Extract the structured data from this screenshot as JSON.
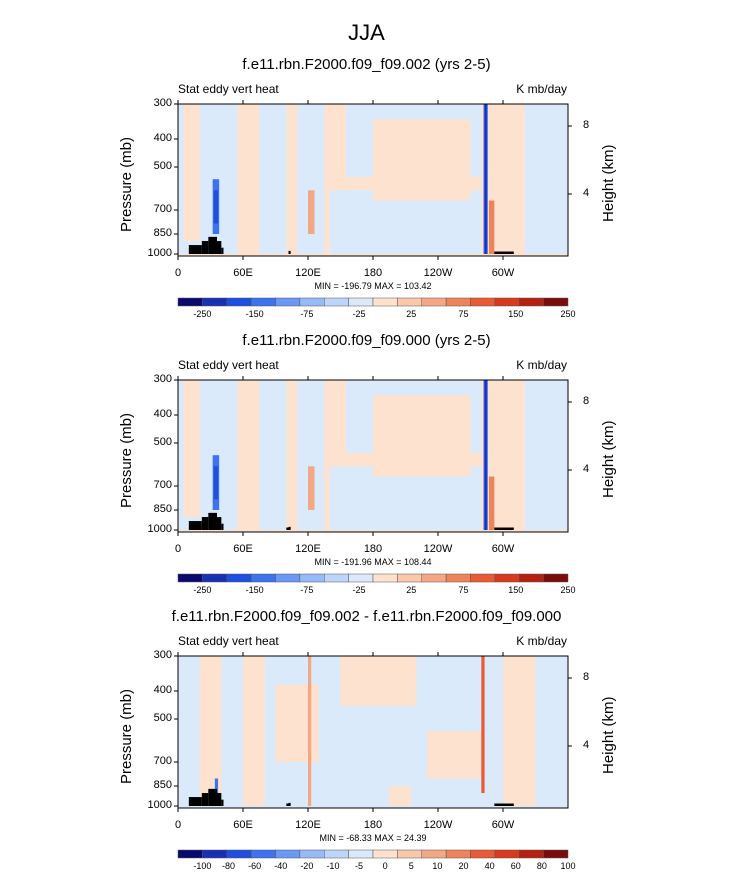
{
  "title": "JJA",
  "colors": {
    "neg": [
      "#0a0a6e",
      "#1a2fb4",
      "#1f4fe0",
      "#3d72f0",
      "#6a98f5",
      "#97b9f7",
      "#bdd5f8",
      "#dbeafb"
    ],
    "pos": [
      "#fde3cf",
      "#f9c8ab",
      "#f4a785",
      "#ef835c",
      "#e85b34",
      "#d73a1c",
      "#b62010",
      "#7a0c0c"
    ]
  },
  "panels": [
    {
      "title": "f.e11.rbn.F2000.f09_f09.002 (yrs 2-5)",
      "left_label": "Stat eddy vert heat",
      "right_label": "K mb/day",
      "minmax": "MIN = -196.79   MAX = 103.42",
      "cbar_labels": [
        "-250",
        "-150",
        "-75",
        "-25",
        "25",
        "75",
        "150",
        "250"
      ]
    },
    {
      "title": "f.e11.rbn.F2000.f09_f09.000 (yrs 2-5)",
      "left_label": "Stat eddy vert heat",
      "right_label": "K mb/day",
      "minmax": "MIN = -191.96   MAX = 108.44",
      "cbar_labels": [
        "-250",
        "-150",
        "-75",
        "-25",
        "25",
        "75",
        "150",
        "250"
      ]
    },
    {
      "title": "f.e11.rbn.F2000.f09_f09.002 - f.e11.rbn.F2000.f09_f09.000",
      "left_label": "Stat eddy vert heat",
      "right_label": "K mb/day",
      "minmax": "MIN = -68.33   MAX =  24.39",
      "cbar_labels": [
        "-100",
        "-80",
        "-60",
        "-40",
        "-20",
        "-10",
        "-5",
        "0",
        "5",
        "10",
        "20",
        "40",
        "60",
        "80",
        "100"
      ]
    }
  ],
  "chart_data": [
    {
      "type": "heatmap",
      "title": "f.e11.rbn.F2000.f09_f09.002 (yrs 2-5)",
      "ylabel": "Pressure (mb)",
      "ylabel_right": "Height (km)",
      "x_ticks": [
        "0",
        "60E",
        "120E",
        "180",
        "120W",
        "60W"
      ],
      "y_ticks": [
        "300",
        "400",
        "500",
        "700",
        "850",
        "1000"
      ],
      "y_right_ticks": [
        "8",
        "4"
      ],
      "min": -196.79,
      "max": 103.42,
      "colorbar_levels": [
        "-250",
        "-150",
        "-75",
        "-25",
        "25",
        "75",
        "150",
        "250"
      ]
    },
    {
      "type": "heatmap",
      "title": "f.e11.rbn.F2000.f09_f09.000 (yrs 2-5)",
      "ylabel": "Pressure (mb)",
      "ylabel_right": "Height (km)",
      "x_ticks": [
        "0",
        "60E",
        "120E",
        "180",
        "120W",
        "60W"
      ],
      "y_ticks": [
        "300",
        "400",
        "500",
        "700",
        "850",
        "1000"
      ],
      "y_right_ticks": [
        "8",
        "4"
      ],
      "min": -191.96,
      "max": 108.44,
      "colorbar_levels": [
        "-250",
        "-150",
        "-75",
        "-25",
        "25",
        "75",
        "150",
        "250"
      ]
    },
    {
      "type": "heatmap",
      "title": "f.e11.rbn.F2000.f09_f09.002 - f.e11.rbn.F2000.f09_f09.000",
      "ylabel": "Pressure (mb)",
      "ylabel_right": "Height (km)",
      "x_ticks": [
        "0",
        "60E",
        "120E",
        "180",
        "120W",
        "60W"
      ],
      "y_ticks": [
        "300",
        "400",
        "500",
        "700",
        "850",
        "1000"
      ],
      "y_right_ticks": [
        "8",
        "4"
      ],
      "min": -68.33,
      "max": 24.39,
      "colorbar_levels": [
        "-100",
        "-80",
        "-60",
        "-40",
        "-20",
        "-10",
        "-5",
        "0",
        "5",
        "10",
        "20",
        "40",
        "60",
        "80",
        "100"
      ]
    }
  ]
}
